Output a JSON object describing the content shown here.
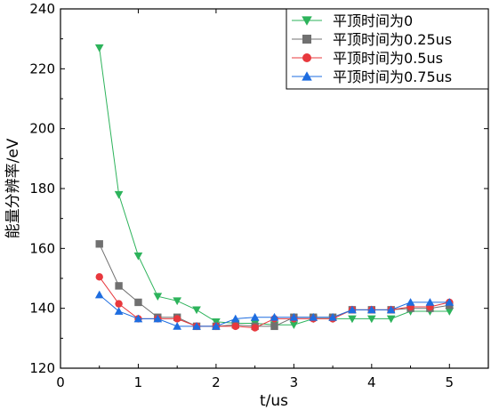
{
  "chart_data": {
    "type": "line",
    "xlabel": "t/us",
    "ylabel": "能量分辨率/eV",
    "xlim": [
      0,
      5.5
    ],
    "ylim": [
      120,
      240
    ],
    "xticks": [
      0,
      1,
      2,
      3,
      4,
      5
    ],
    "xtick_labels": [
      "0",
      "1",
      "2",
      "3",
      "4",
      "5"
    ],
    "yticks": [
      120,
      140,
      160,
      180,
      200,
      220,
      240
    ],
    "ytick_labels": [
      "120",
      "140",
      "160",
      "180",
      "200",
      "220",
      "240"
    ],
    "grid": false,
    "legend_position": "top-right",
    "x": [
      0.5,
      0.75,
      1.0,
      1.25,
      1.5,
      1.75,
      2.0,
      2.25,
      2.5,
      2.75,
      3.0,
      3.25,
      3.5,
      3.75,
      4.0,
      4.25,
      4.5,
      4.75,
      5.0
    ],
    "series": [
      {
        "name": "平顶时间为0",
        "color": "#2db35b",
        "marker": "triangle-down",
        "values": [
          227,
          178,
          157.5,
          144,
          142.5,
          139.5,
          135.5,
          135,
          135,
          134.5,
          134.5,
          136.5,
          136.5,
          136.5,
          136.5,
          136.5,
          139,
          139,
          139
        ]
      },
      {
        "name": "平顶时间为0.25us",
        "color": "#707070",
        "marker": "square",
        "values": [
          161.5,
          147.5,
          142,
          137,
          137,
          134,
          134,
          134.5,
          134,
          134,
          137,
          137,
          137,
          139.5,
          139.5,
          139.5,
          140,
          140,
          141
        ]
      },
      {
        "name": "平顶时间为0.5us",
        "color": "#e8383d",
        "marker": "circle",
        "values": [
          150.5,
          141.5,
          136.5,
          136.5,
          136.5,
          134,
          134,
          134,
          133.5,
          136.5,
          136.5,
          136.5,
          136.5,
          139.5,
          139.5,
          139.5,
          140.5,
          140.5,
          142
        ]
      },
      {
        "name": "平顶时间为0.75us",
        "color": "#1e6de0",
        "marker": "triangle-up",
        "values": [
          144.5,
          139,
          136.5,
          136.5,
          134,
          134,
          134,
          136.5,
          137,
          137,
          137,
          137,
          137,
          139.5,
          139.5,
          139.5,
          142,
          142,
          142
        ]
      }
    ]
  }
}
